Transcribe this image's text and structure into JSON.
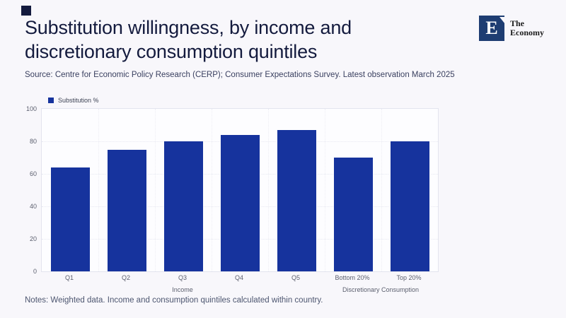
{
  "page": {
    "background": "#f8f7fb"
  },
  "header": {
    "title_line1": "Substitution willingness, by income and",
    "title_line2": "discretionary consumption quintiles",
    "source": "Source: Centre for Economic Policy Research (CERP); Consumer Expectations Survey. Latest observation March 2025"
  },
  "logo": {
    "monogram": "E",
    "name_line1": "The",
    "name_line2": "Economy",
    "square_color": "#1e3d72"
  },
  "chart_data": {
    "type": "bar",
    "title": "Substitution willingness, by income and discretionary consumption quintiles",
    "legend": "Substitution %",
    "categories": [
      "Q1",
      "Q2",
      "Q3",
      "Q4",
      "Q5",
      "Bottom 20%",
      "Top 20%"
    ],
    "values": [
      64,
      75,
      80,
      84,
      87,
      70,
      80
    ],
    "groups": [
      {
        "label": "Income",
        "from": 0,
        "to": 4
      },
      {
        "label": "Discretionary Consumption",
        "from": 5,
        "to": 6
      }
    ],
    "ylim": [
      0,
      100
    ],
    "yticks": [
      0,
      20,
      40,
      60,
      80,
      100
    ],
    "bar_color": "#16339d",
    "grid": true,
    "legend_position": "top-left"
  },
  "notes": {
    "text": "Notes: Weighted data. Income and consumption quintiles calculated within country."
  }
}
